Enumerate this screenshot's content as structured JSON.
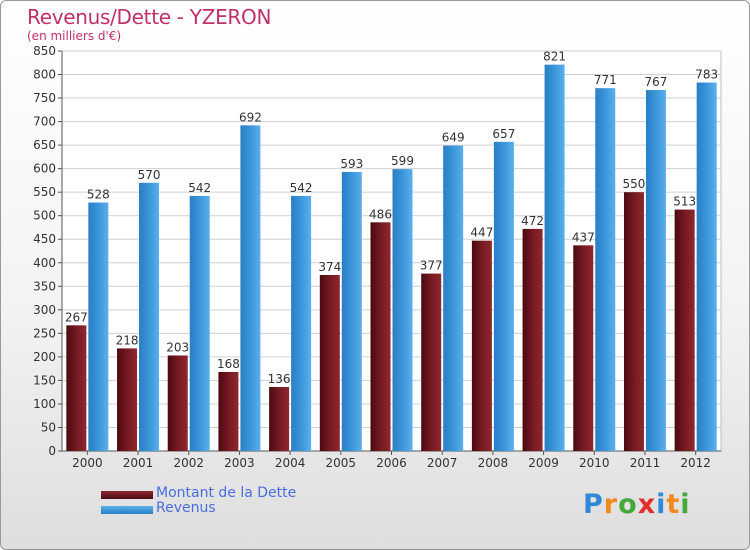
{
  "title": "Revenus/Dette - YZERON",
  "subtitle": "(en milliers d'€)",
  "colors": {
    "title": "#c0306a",
    "dette": "#7a1a22",
    "revenus": "#3d98dc",
    "legend_text": "#4a6ee0",
    "grid": "#d0d0d0"
  },
  "chart_data": {
    "type": "bar",
    "title": "Revenus/Dette - YZERON",
    "ylabel": "(en milliers d'€)",
    "xlabel": "",
    "categories": [
      "2000",
      "2001",
      "2002",
      "2003",
      "2004",
      "2005",
      "2006",
      "2007",
      "2008",
      "2009",
      "2010",
      "2011",
      "2012"
    ],
    "series": [
      {
        "name": "Montant de la Dette",
        "values": [
          267,
          218,
          203,
          168,
          136,
          374,
          486,
          377,
          447,
          472,
          437,
          550,
          513
        ]
      },
      {
        "name": "Revenus",
        "values": [
          528,
          570,
          542,
          692,
          542,
          593,
          599,
          649,
          657,
          821,
          771,
          767,
          783
        ]
      }
    ],
    "ylim": [
      0,
      850
    ],
    "yticks": [
      0,
      50,
      100,
      150,
      200,
      250,
      300,
      350,
      400,
      450,
      500,
      550,
      600,
      650,
      700,
      750,
      800,
      850
    ],
    "grid": true,
    "legend_position": "bottom-left"
  },
  "legend": {
    "items": [
      {
        "label": "Montant de la Dette"
      },
      {
        "label": "Revenus"
      }
    ]
  },
  "logo": {
    "letters": [
      "P",
      "r",
      "o",
      "x",
      "i",
      "t",
      "i"
    ],
    "colors": [
      "#2e8ad8",
      "#f08a1c",
      "#46a83a",
      "#e0302a",
      "#2e8ad8",
      "#f08a1c",
      "#46a83a"
    ]
  }
}
